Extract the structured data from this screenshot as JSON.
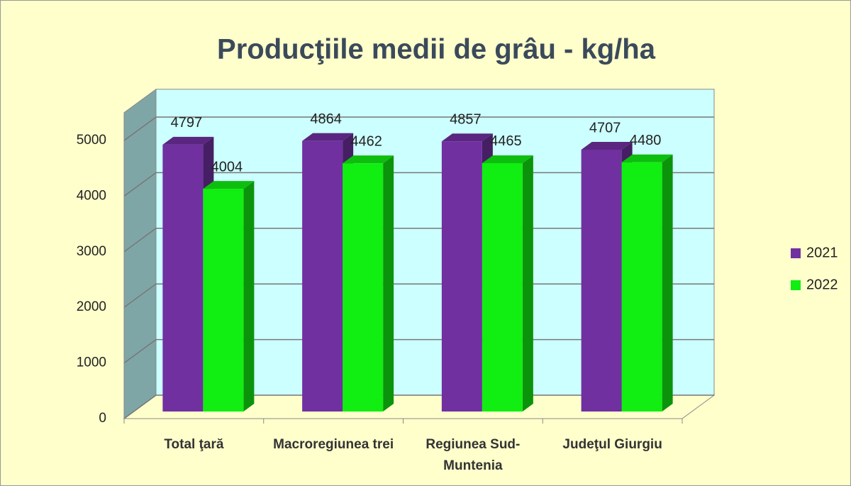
{
  "chart_data": {
    "type": "bar3d",
    "title": "Producţiile medii de grâu  - kg/ha",
    "categories": [
      "Total ţară",
      "Macroregiunea trei",
      "Regiunea Sud-Muntenia",
      "Judeţul Giurgiu"
    ],
    "series": [
      {
        "name": "2021",
        "color": "#7030a0",
        "values": [
          4797,
          4864,
          4857,
          4707
        ]
      },
      {
        "name": "2022",
        "color": "#11ee11",
        "values": [
          4004,
          4462,
          4465,
          4480
        ]
      }
    ],
    "ylim": [
      0,
      5500
    ],
    "yticks": [
      0,
      1000,
      2000,
      3000,
      4000,
      5000
    ],
    "grid": true,
    "legend": "right"
  }
}
